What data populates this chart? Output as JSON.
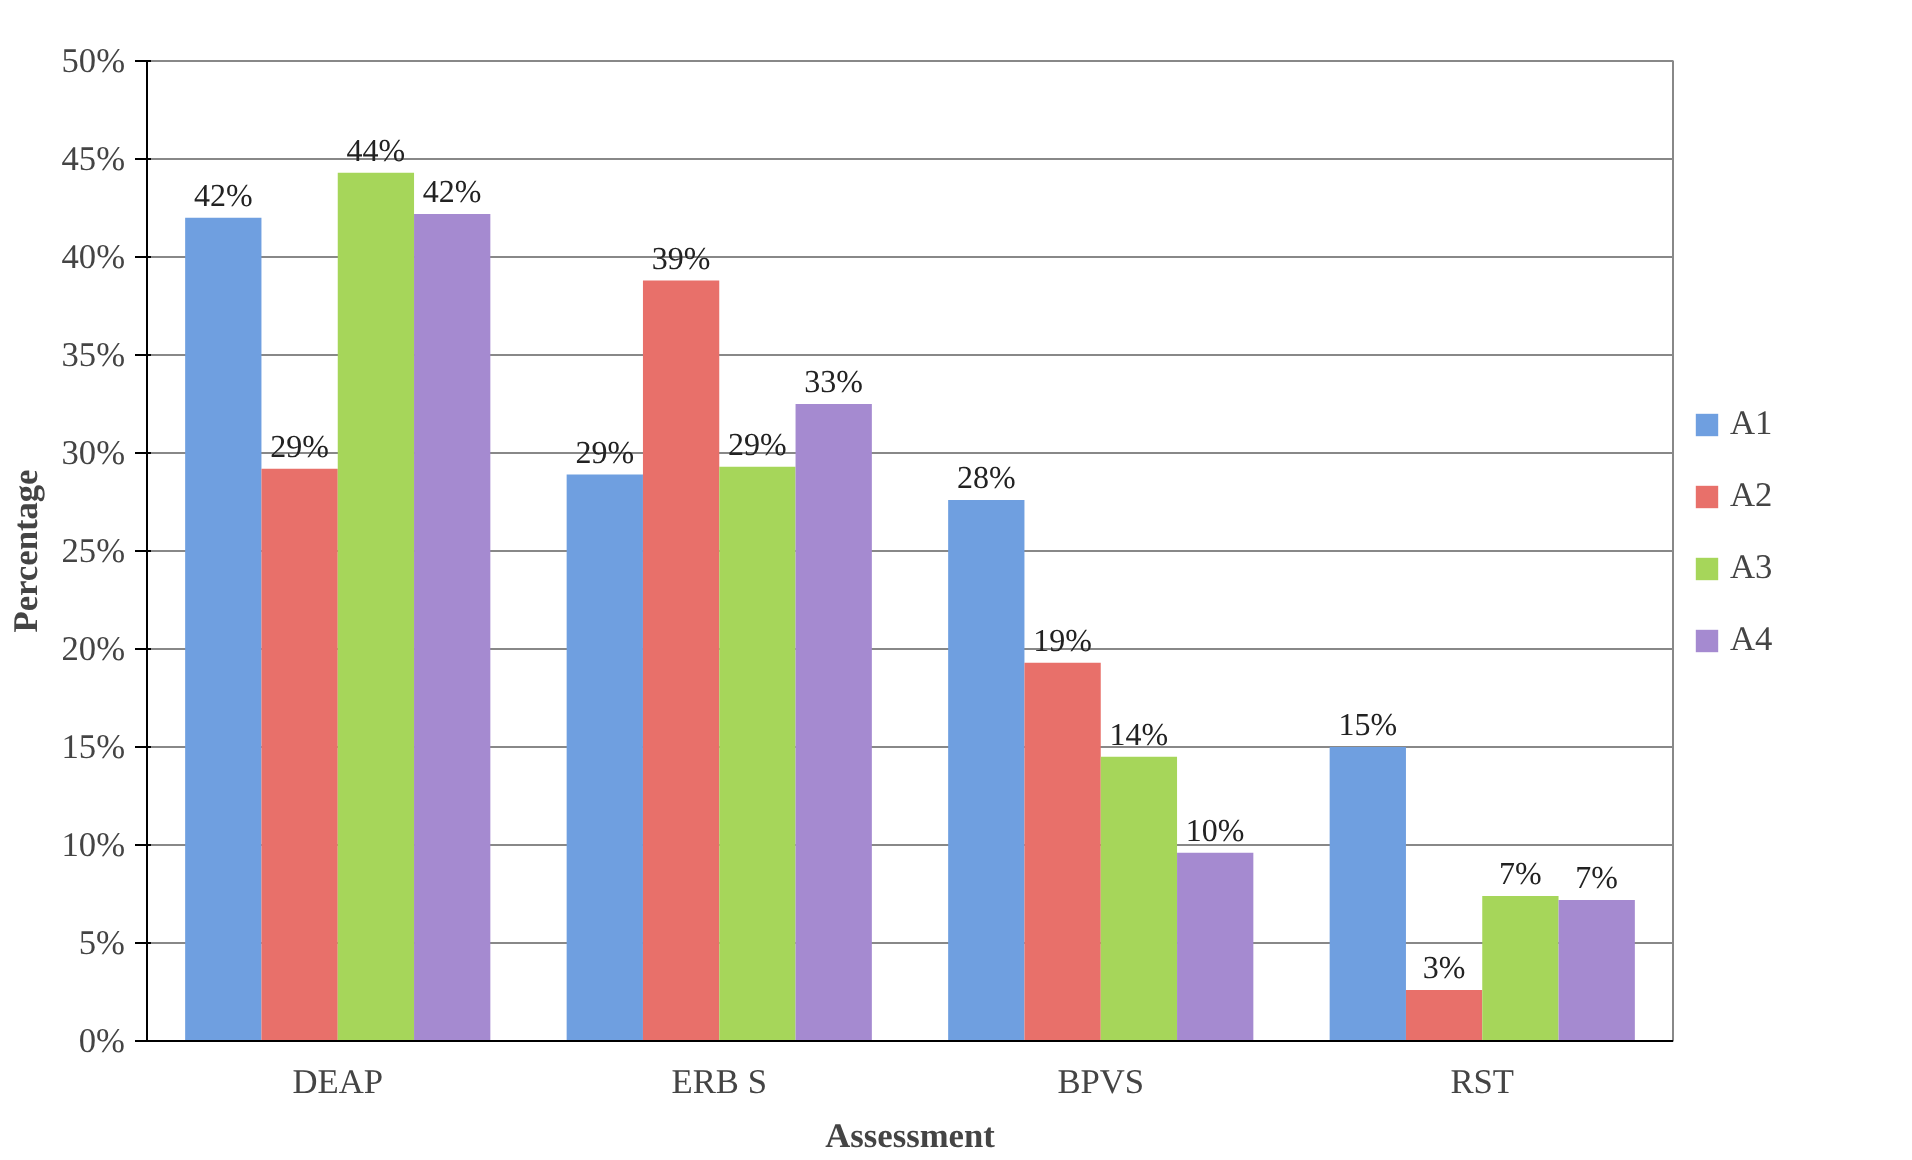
{
  "chart_data": {
    "type": "bar",
    "xlabel": "Assessment",
    "ylabel": "Percentage",
    "categories": [
      "DEAP",
      "ERB S",
      "BPVS",
      "RST"
    ],
    "series": [
      {
        "name": "A1",
        "color": "#6f9fe0",
        "values": [
          42.0,
          28.9,
          27.6,
          15.0
        ],
        "value_labels": [
          "42%",
          "29%",
          "28%",
          "15%"
        ]
      },
      {
        "name": "A2",
        "color": "#e8706a",
        "values": [
          29.2,
          38.8,
          19.3,
          2.6
        ],
        "value_labels": [
          "29%",
          "39%",
          "19%",
          "3%"
        ]
      },
      {
        "name": "A3",
        "color": "#a6d65a",
        "values": [
          44.3,
          29.3,
          14.5,
          7.4
        ],
        "value_labels": [
          "44%",
          "29%",
          "14%",
          "7%"
        ]
      },
      {
        "name": "A4",
        "color": "#a58ad0",
        "values": [
          42.2,
          32.5,
          9.6,
          7.2
        ],
        "value_labels": [
          "42%",
          "33%",
          "10%",
          "7%"
        ]
      }
    ],
    "ylim": [
      0,
      50
    ],
    "yticks": [
      {
        "value": 0,
        "label": "0%"
      },
      {
        "value": 5,
        "label": "5%"
      },
      {
        "value": 10,
        "label": "10%"
      },
      {
        "value": 15,
        "label": "15%"
      },
      {
        "value": 20,
        "label": "20%"
      },
      {
        "value": 25,
        "label": "25%"
      },
      {
        "value": 30,
        "label": "30%"
      },
      {
        "value": 35,
        "label": "35%"
      },
      {
        "value": 40,
        "label": "40%"
      },
      {
        "value": 45,
        "label": "45%"
      },
      {
        "value": 50,
        "label": "50%"
      }
    ],
    "grid": "y",
    "legend": "right"
  }
}
